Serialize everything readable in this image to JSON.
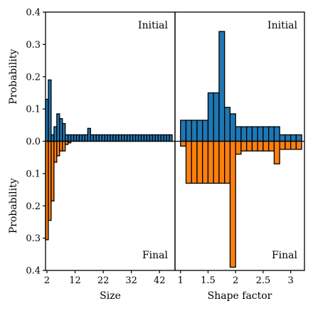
{
  "chart_data": {
    "type": "bar",
    "panels": [
      {
        "name": "size",
        "xlabel": "Size",
        "ylabel_top": "Probability",
        "ylabel_bottom": "Probability",
        "xlim": [
          1.5,
          47.5
        ],
        "ylim": [
          -0.4,
          0.4
        ],
        "xticks": [
          2,
          12,
          22,
          32,
          42
        ],
        "yticks": [
          0.4,
          0.3,
          0.2,
          0.1,
          0.0,
          0.1,
          0.2,
          0.3,
          0.4
        ],
        "bin_width": 1,
        "label_top": "Initial",
        "label_bottom": "Final",
        "series": [
          {
            "name": "Initial",
            "color": "#1f77b4",
            "direction": "up",
            "x": [
              2,
              3,
              4,
              5,
              6,
              7,
              8,
              9,
              10,
              11,
              12,
              13,
              14,
              15,
              16,
              17,
              18,
              19,
              20,
              21,
              22,
              23,
              24,
              25,
              26,
              27,
              28,
              29,
              30,
              31,
              32,
              33,
              34,
              35,
              36,
              37,
              38,
              39,
              40,
              41,
              42,
              43,
              44,
              45,
              46
            ],
            "values": [
              0.13,
              0.19,
              0.02,
              0.045,
              0.085,
              0.07,
              0.055,
              0.02,
              0.02,
              0.02,
              0.02,
              0.02,
              0.02,
              0.02,
              0.02,
              0.04,
              0.02,
              0.02,
              0.02,
              0.02,
              0.02,
              0.02,
              0.02,
              0.02,
              0.02,
              0.02,
              0.02,
              0.02,
              0.02,
              0.02,
              0.02,
              0.02,
              0.02,
              0.02,
              0.02,
              0.02,
              0.02,
              0.02,
              0.02,
              0.02,
              0.02,
              0.02,
              0.02,
              0.02,
              0.02
            ]
          },
          {
            "name": "Final",
            "color": "#ff7f0e",
            "direction": "down",
            "x": [
              2,
              3,
              4,
              5,
              6,
              7,
              8,
              9,
              10
            ],
            "values": [
              0.305,
              0.245,
              0.185,
              0.065,
              0.045,
              0.03,
              0.03,
              0.01,
              0.005
            ]
          }
        ]
      },
      {
        "name": "shape-factor",
        "xlabel": "Shape factor",
        "xlim": [
          0.9,
          3.25
        ],
        "ylim": [
          -0.4,
          0.4
        ],
        "xticks": [
          1,
          1.5,
          2,
          2.5,
          3
        ],
        "bin_width": 0.1,
        "label_top": "Initial",
        "label_bottom": "Final",
        "series": [
          {
            "name": "Initial",
            "color": "#1f77b4",
            "direction": "up",
            "x": [
              1.05,
              1.15,
              1.25,
              1.35,
              1.45,
              1.55,
              1.65,
              1.75,
              1.85,
              1.95,
              2.05,
              2.15,
              2.25,
              2.35,
              2.45,
              2.55,
              2.65,
              2.75,
              2.85,
              2.95,
              3.05,
              3.15
            ],
            "values": [
              0.065,
              0.065,
              0.065,
              0.065,
              0.065,
              0.15,
              0.15,
              0.34,
              0.105,
              0.085,
              0.045,
              0.045,
              0.045,
              0.045,
              0.045,
              0.045,
              0.045,
              0.045,
              0.02,
              0.02,
              0.02,
              0.02
            ]
          },
          {
            "name": "Final",
            "color": "#ff7f0e",
            "direction": "down",
            "x": [
              1.05,
              1.15,
              1.25,
              1.35,
              1.45,
              1.55,
              1.65,
              1.75,
              1.85,
              1.95,
              2.05,
              2.15,
              2.25,
              2.35,
              2.45,
              2.55,
              2.65,
              2.75,
              2.85,
              2.95,
              3.05,
              3.15
            ],
            "values": [
              0.015,
              0.13,
              0.13,
              0.13,
              0.13,
              0.13,
              0.13,
              0.13,
              0.13,
              0.39,
              0.04,
              0.03,
              0.03,
              0.03,
              0.03,
              0.03,
              0.03,
              0.07,
              0.025,
              0.025,
              0.025,
              0.025
            ]
          }
        ]
      }
    ]
  }
}
